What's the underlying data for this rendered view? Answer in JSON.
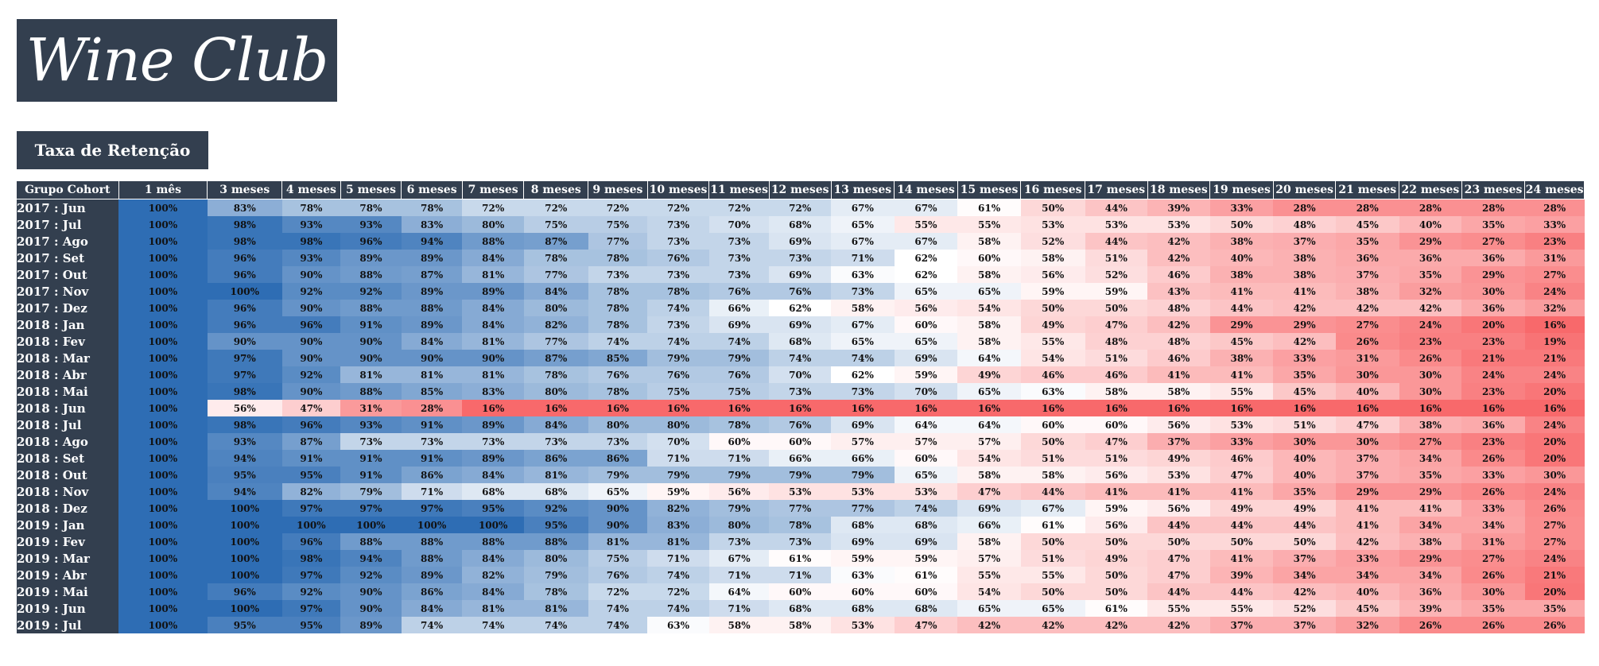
{
  "logo": {
    "text": "Wine Club"
  },
  "subtitle": "Taxa de Retenção",
  "colors": {
    "header_bg": "#333f4f",
    "high": "#2e6db4",
    "mid": "#ffffff",
    "low": "#f8696b"
  },
  "table": {
    "group_header": "Grupo Cohort",
    "columns": [
      "1 mês",
      "3 meses",
      "4 meses",
      "5 meses",
      "6 meses",
      "7 meses",
      "8 meses",
      "9 meses",
      "10 meses",
      "11 meses",
      "12 meses",
      "13 meses",
      "14 meses",
      "15 meses",
      "16 meses",
      "17 meses",
      "18 meses",
      "19 meses",
      "20 meses",
      "21 meses",
      "22 meses",
      "23 meses",
      "24 meses"
    ],
    "rows": [
      {
        "cohort": "2017 : Jun",
        "values": [
          "100%",
          "83%",
          "78%",
          "78%",
          "78%",
          "72%",
          "72%",
          "72%",
          "72%",
          "72%",
          "72%",
          "67%",
          "67%",
          "61%",
          "50%",
          "44%",
          "39%",
          "33%",
          "28%",
          "28%",
          "28%",
          "28%",
          "28%"
        ]
      },
      {
        "cohort": "2017 : Jul",
        "values": [
          "100%",
          "98%",
          "93%",
          "93%",
          "83%",
          "80%",
          "75%",
          "75%",
          "73%",
          "70%",
          "68%",
          "65%",
          "55%",
          "55%",
          "53%",
          "53%",
          "53%",
          "50%",
          "48%",
          "45%",
          "40%",
          "35%",
          "33%"
        ]
      },
      {
        "cohort": "2017 : Ago",
        "values": [
          "100%",
          "98%",
          "98%",
          "96%",
          "94%",
          "88%",
          "87%",
          "77%",
          "73%",
          "73%",
          "69%",
          "67%",
          "67%",
          "58%",
          "52%",
          "44%",
          "42%",
          "38%",
          "37%",
          "35%",
          "29%",
          "27%",
          "23%"
        ]
      },
      {
        "cohort": "2017 : Set",
        "values": [
          "100%",
          "96%",
          "93%",
          "89%",
          "89%",
          "84%",
          "78%",
          "78%",
          "76%",
          "73%",
          "73%",
          "71%",
          "62%",
          "60%",
          "58%",
          "51%",
          "42%",
          "40%",
          "38%",
          "36%",
          "36%",
          "36%",
          "31%"
        ]
      },
      {
        "cohort": "2017 : Out",
        "values": [
          "100%",
          "96%",
          "90%",
          "88%",
          "87%",
          "81%",
          "77%",
          "73%",
          "73%",
          "73%",
          "69%",
          "63%",
          "62%",
          "58%",
          "56%",
          "52%",
          "46%",
          "38%",
          "38%",
          "37%",
          "35%",
          "29%",
          "27%"
        ]
      },
      {
        "cohort": "2017 : Nov",
        "values": [
          "100%",
          "100%",
          "92%",
          "92%",
          "89%",
          "89%",
          "84%",
          "78%",
          "78%",
          "76%",
          "76%",
          "73%",
          "65%",
          "65%",
          "59%",
          "59%",
          "43%",
          "41%",
          "41%",
          "38%",
          "32%",
          "30%",
          "24%"
        ]
      },
      {
        "cohort": "2017 : Dez",
        "values": [
          "100%",
          "96%",
          "90%",
          "88%",
          "88%",
          "84%",
          "80%",
          "78%",
          "74%",
          "66%",
          "62%",
          "58%",
          "56%",
          "54%",
          "50%",
          "50%",
          "48%",
          "44%",
          "42%",
          "42%",
          "42%",
          "36%",
          "32%"
        ]
      },
      {
        "cohort": "2018 : Jan",
        "values": [
          "100%",
          "96%",
          "96%",
          "91%",
          "89%",
          "84%",
          "82%",
          "78%",
          "73%",
          "69%",
          "69%",
          "67%",
          "60%",
          "58%",
          "49%",
          "47%",
          "42%",
          "29%",
          "29%",
          "27%",
          "24%",
          "20%",
          "16%"
        ]
      },
      {
        "cohort": "2018 : Fev",
        "values": [
          "100%",
          "90%",
          "90%",
          "90%",
          "84%",
          "81%",
          "77%",
          "74%",
          "74%",
          "74%",
          "68%",
          "65%",
          "65%",
          "58%",
          "55%",
          "48%",
          "48%",
          "45%",
          "42%",
          "26%",
          "23%",
          "23%",
          "19%"
        ]
      },
      {
        "cohort": "2018 : Mar",
        "values": [
          "100%",
          "97%",
          "90%",
          "90%",
          "90%",
          "90%",
          "87%",
          "85%",
          "79%",
          "79%",
          "74%",
          "74%",
          "69%",
          "64%",
          "54%",
          "51%",
          "46%",
          "38%",
          "33%",
          "31%",
          "26%",
          "21%",
          "21%"
        ]
      },
      {
        "cohort": "2018 : Abr",
        "values": [
          "100%",
          "97%",
          "92%",
          "81%",
          "81%",
          "81%",
          "78%",
          "76%",
          "76%",
          "76%",
          "70%",
          "62%",
          "59%",
          "49%",
          "46%",
          "46%",
          "41%",
          "41%",
          "35%",
          "30%",
          "30%",
          "24%",
          "24%"
        ]
      },
      {
        "cohort": "2018 : Mai",
        "values": [
          "100%",
          "98%",
          "90%",
          "88%",
          "85%",
          "83%",
          "80%",
          "78%",
          "75%",
          "75%",
          "73%",
          "73%",
          "70%",
          "65%",
          "63%",
          "58%",
          "58%",
          "55%",
          "45%",
          "40%",
          "30%",
          "23%",
          "20%"
        ]
      },
      {
        "cohort": "2018 : Jun",
        "values": [
          "100%",
          "56%",
          "47%",
          "31%",
          "28%",
          "16%",
          "16%",
          "16%",
          "16%",
          "16%",
          "16%",
          "16%",
          "16%",
          "16%",
          "16%",
          "16%",
          "16%",
          "16%",
          "16%",
          "16%",
          "16%",
          "16%",
          "16%"
        ]
      },
      {
        "cohort": "2018 : Jul",
        "values": [
          "100%",
          "98%",
          "96%",
          "93%",
          "91%",
          "89%",
          "84%",
          "80%",
          "80%",
          "78%",
          "76%",
          "69%",
          "64%",
          "64%",
          "60%",
          "60%",
          "56%",
          "53%",
          "51%",
          "47%",
          "38%",
          "36%",
          "24%"
        ]
      },
      {
        "cohort": "2018 : Ago",
        "values": [
          "100%",
          "93%",
          "87%",
          "73%",
          "73%",
          "73%",
          "73%",
          "73%",
          "70%",
          "60%",
          "60%",
          "57%",
          "57%",
          "57%",
          "50%",
          "47%",
          "37%",
          "33%",
          "30%",
          "30%",
          "27%",
          "23%",
          "20%"
        ]
      },
      {
        "cohort": "2018 : Set",
        "values": [
          "100%",
          "94%",
          "91%",
          "91%",
          "91%",
          "89%",
          "86%",
          "86%",
          "71%",
          "71%",
          "66%",
          "66%",
          "60%",
          "54%",
          "51%",
          "51%",
          "49%",
          "46%",
          "40%",
          "37%",
          "34%",
          "26%",
          "20%"
        ]
      },
      {
        "cohort": "2018 : Out",
        "values": [
          "100%",
          "95%",
          "95%",
          "91%",
          "86%",
          "84%",
          "81%",
          "79%",
          "79%",
          "79%",
          "79%",
          "79%",
          "65%",
          "58%",
          "58%",
          "56%",
          "53%",
          "47%",
          "40%",
          "37%",
          "35%",
          "33%",
          "30%"
        ]
      },
      {
        "cohort": "2018 : Nov",
        "values": [
          "100%",
          "94%",
          "82%",
          "79%",
          "71%",
          "68%",
          "68%",
          "65%",
          "59%",
          "56%",
          "53%",
          "53%",
          "53%",
          "47%",
          "44%",
          "41%",
          "41%",
          "41%",
          "35%",
          "29%",
          "29%",
          "26%",
          "24%"
        ]
      },
      {
        "cohort": "2018 : Dez",
        "values": [
          "100%",
          "100%",
          "97%",
          "97%",
          "97%",
          "95%",
          "92%",
          "90%",
          "82%",
          "79%",
          "77%",
          "77%",
          "74%",
          "69%",
          "67%",
          "59%",
          "56%",
          "49%",
          "49%",
          "41%",
          "41%",
          "33%",
          "26%"
        ]
      },
      {
        "cohort": "2019 : Jan",
        "values": [
          "100%",
          "100%",
          "100%",
          "100%",
          "100%",
          "100%",
          "95%",
          "90%",
          "83%",
          "80%",
          "78%",
          "68%",
          "68%",
          "66%",
          "61%",
          "56%",
          "44%",
          "44%",
          "44%",
          "41%",
          "34%",
          "34%",
          "27%"
        ]
      },
      {
        "cohort": "2019 : Fev",
        "values": [
          "100%",
          "100%",
          "96%",
          "88%",
          "88%",
          "88%",
          "88%",
          "81%",
          "81%",
          "73%",
          "73%",
          "69%",
          "69%",
          "58%",
          "50%",
          "50%",
          "50%",
          "50%",
          "50%",
          "42%",
          "38%",
          "31%",
          "27%"
        ]
      },
      {
        "cohort": "2019 : Mar",
        "values": [
          "100%",
          "100%",
          "98%",
          "94%",
          "88%",
          "84%",
          "80%",
          "75%",
          "71%",
          "67%",
          "61%",
          "59%",
          "59%",
          "57%",
          "51%",
          "49%",
          "47%",
          "41%",
          "37%",
          "33%",
          "29%",
          "27%",
          "24%"
        ]
      },
      {
        "cohort": "2019 : Abr",
        "values": [
          "100%",
          "100%",
          "97%",
          "92%",
          "89%",
          "82%",
          "79%",
          "76%",
          "74%",
          "71%",
          "71%",
          "63%",
          "61%",
          "55%",
          "55%",
          "50%",
          "47%",
          "39%",
          "34%",
          "34%",
          "34%",
          "26%",
          "21%"
        ]
      },
      {
        "cohort": "2019 : Mai",
        "values": [
          "100%",
          "96%",
          "92%",
          "90%",
          "86%",
          "84%",
          "78%",
          "72%",
          "72%",
          "64%",
          "60%",
          "60%",
          "60%",
          "54%",
          "50%",
          "50%",
          "44%",
          "44%",
          "42%",
          "40%",
          "36%",
          "30%",
          "20%"
        ]
      },
      {
        "cohort": "2019 : Jun",
        "values": [
          "100%",
          "100%",
          "97%",
          "90%",
          "84%",
          "81%",
          "81%",
          "74%",
          "74%",
          "71%",
          "68%",
          "68%",
          "68%",
          "65%",
          "65%",
          "61%",
          "55%",
          "55%",
          "52%",
          "45%",
          "39%",
          "35%",
          "35%"
        ]
      },
      {
        "cohort": "2019 : Jul",
        "values": [
          "100%",
          "95%",
          "95%",
          "89%",
          "74%",
          "74%",
          "74%",
          "74%",
          "63%",
          "58%",
          "58%",
          "53%",
          "47%",
          "42%",
          "42%",
          "42%",
          "42%",
          "37%",
          "37%",
          "32%",
          "26%",
          "26%",
          "26%"
        ]
      }
    ]
  }
}
